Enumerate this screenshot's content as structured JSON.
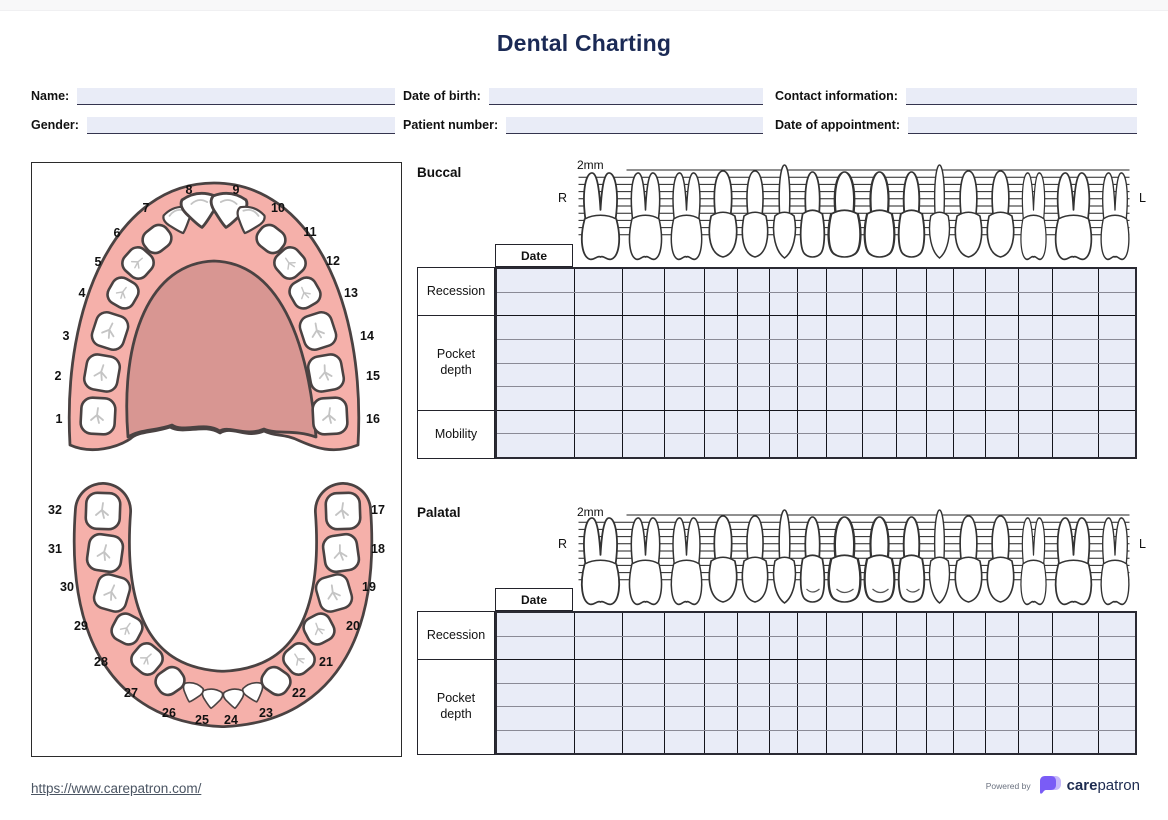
{
  "title": "Dental Charting",
  "patient_fields": {
    "name_label": "Name:",
    "dob_label": "Date of birth:",
    "contact_label": "Contact information:",
    "gender_label": "Gender:",
    "patient_number_label": "Patient number:",
    "appointment_label": "Date of appointment:"
  },
  "diagram": {
    "upper_teeth_numbers": [
      "1",
      "2",
      "3",
      "4",
      "5",
      "6",
      "7",
      "8",
      "9",
      "10",
      "11",
      "12",
      "13",
      "14",
      "15",
      "16"
    ],
    "lower_teeth_numbers": [
      "17",
      "18",
      "19",
      "20",
      "21",
      "22",
      "23",
      "24",
      "25",
      "26",
      "27",
      "28",
      "29",
      "30",
      "31",
      "32"
    ]
  },
  "buccal_chart": {
    "title": "Buccal",
    "scale_label": "2mm",
    "right_marker": "R",
    "left_marker": "L",
    "date_header": "Date",
    "row_labels": [
      "Recession",
      "Pocket depth",
      "Mobility"
    ]
  },
  "palatal_chart": {
    "title": "Palatal",
    "scale_label": "2mm",
    "right_marker": "R",
    "left_marker": "L",
    "date_header": "Date",
    "row_labels": [
      "Recession",
      "Pocket depth"
    ]
  },
  "footer": {
    "url": "https://www.carepatron.com/",
    "powered_by": "Powered by",
    "brand_bold": "care",
    "brand_light": "patron"
  },
  "colors": {
    "title_navy": "#1b2a55",
    "field_fill": "#e9ecf7",
    "grid_fill": "#e9ecf7",
    "gum_pink": "#f5b0aa",
    "palate_pink": "#d89692",
    "outline_brown": "#4a4242",
    "brand_purple": "#7a5cf6",
    "brand_purple_light": "#c7b8fa"
  }
}
